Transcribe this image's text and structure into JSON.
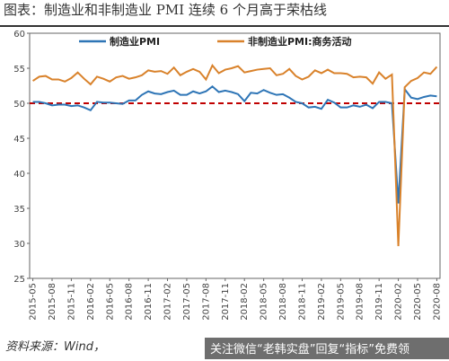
{
  "chart_data": {
    "type": "line",
    "title": "图表：制造业和非制造业 PMI 连续 6 个月高于荣枯线",
    "source": "资料来源：Wind，",
    "watermark": "关注微信“老韩实盘”回复“指标”免费领",
    "categories": [
      "2015-05",
      null,
      null,
      "2015-08",
      null,
      null,
      "2015-11",
      null,
      null,
      "2016-02",
      null,
      null,
      "2016-05",
      null,
      null,
      "2016-08",
      null,
      null,
      "2016-11",
      null,
      null,
      "2017-02",
      null,
      null,
      "2017-05",
      null,
      null,
      "2017-08",
      null,
      null,
      "2017-11",
      null,
      null,
      "2018-02",
      null,
      null,
      "2018-05",
      null,
      null,
      "2018-08",
      null,
      null,
      "2018-11",
      null,
      null,
      "2019-02",
      null,
      null,
      "2019-05",
      null,
      null,
      "2019-08",
      null,
      null,
      "2019-11",
      null,
      null,
      "2020-02",
      null,
      null,
      "2020-05",
      null,
      null,
      "2020-08"
    ],
    "series": [
      {
        "name": "制造业PMI",
        "color": "#2e75b6",
        "values": [
          50.2,
          50.2,
          50.0,
          49.7,
          49.8,
          49.8,
          49.6,
          49.7,
          49.4,
          49.0,
          50.2,
          50.1,
          50.1,
          50.0,
          49.9,
          50.4,
          50.4,
          51.2,
          51.7,
          51.4,
          51.3,
          51.6,
          51.8,
          51.2,
          51.2,
          51.7,
          51.4,
          51.7,
          52.4,
          51.6,
          51.8,
          51.6,
          51.3,
          50.3,
          51.5,
          51.4,
          51.9,
          51.5,
          51.2,
          51.3,
          50.8,
          50.2,
          50.0,
          49.4,
          49.5,
          49.2,
          50.5,
          50.1,
          49.4,
          49.4,
          49.7,
          49.5,
          49.8,
          49.3,
          50.2,
          50.2,
          50.0,
          35.7,
          52.0,
          50.8,
          50.6,
          50.9,
          51.1,
          51.0
        ]
      },
      {
        "name": "非制造业PMI:商务活动",
        "color": "#d9822b",
        "values": [
          53.2,
          53.8,
          53.9,
          53.4,
          53.4,
          53.1,
          53.6,
          54.4,
          53.5,
          52.7,
          53.8,
          53.5,
          53.1,
          53.7,
          53.9,
          53.5,
          53.7,
          54.0,
          54.7,
          54.5,
          54.6,
          54.2,
          55.1,
          54.0,
          54.5,
          54.9,
          54.5,
          53.4,
          55.4,
          54.3,
          54.8,
          55.0,
          55.3,
          54.4,
          54.6,
          54.8,
          54.9,
          55.0,
          54.0,
          54.2,
          54.9,
          53.9,
          53.4,
          53.8,
          54.7,
          54.3,
          54.8,
          54.3,
          54.3,
          54.2,
          53.7,
          53.8,
          53.7,
          52.8,
          54.4,
          53.5,
          54.1,
          29.6,
          52.3,
          53.2,
          53.6,
          54.4,
          54.2,
          55.2
        ]
      }
    ],
    "reference_line": {
      "value": 50,
      "color": "#c00000"
    },
    "ylim": [
      25,
      60
    ],
    "yticks": [
      25,
      30,
      35,
      40,
      45,
      50,
      55,
      60
    ],
    "grid": false
  }
}
